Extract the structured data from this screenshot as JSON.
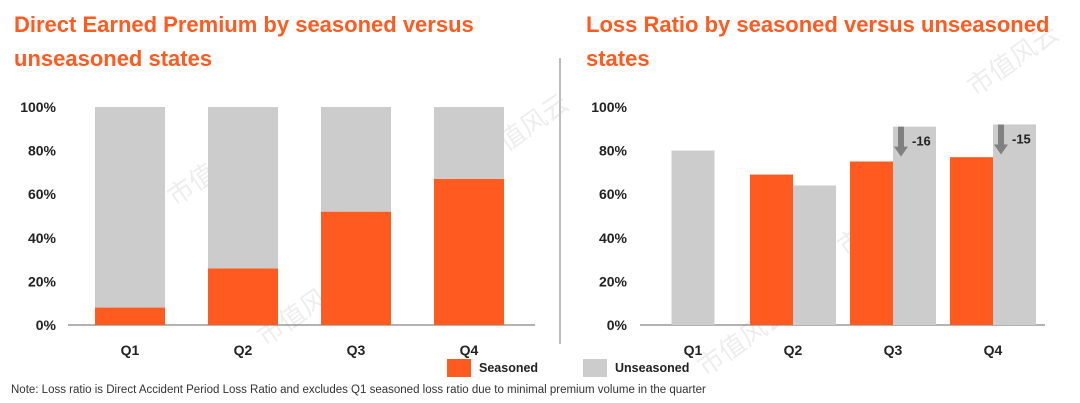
{
  "colors": {
    "seasoned": "#ff5a1f",
    "unseasoned": "#cccccc",
    "arrow": "#808080",
    "axis": "#666666"
  },
  "watermark": {
    "text": "市值风云"
  },
  "chart_data": [
    {
      "type": "bar",
      "title": "Direct Earned Premium by seasoned versus unseasoned states",
      "stacked": true,
      "categories": [
        "Q1",
        "Q2",
        "Q3",
        "Q4"
      ],
      "series": [
        {
          "name": "Seasoned",
          "values": [
            8,
            26,
            52,
            67
          ]
        },
        {
          "name": "Unseasoned",
          "values": [
            92,
            74,
            48,
            33
          ]
        }
      ],
      "ylim": [
        0,
        100
      ],
      "yticks": [
        "0%",
        "20%",
        "40%",
        "60%",
        "80%",
        "100%"
      ],
      "grid": false
    },
    {
      "type": "bar",
      "title": "Loss Ratio by seasoned versus unseasoned states",
      "stacked": false,
      "categories": [
        "Q1",
        "Q2",
        "Q3",
        "Q4"
      ],
      "series": [
        {
          "name": "Seasoned",
          "values": [
            null,
            69,
            75,
            77
          ]
        },
        {
          "name": "Unseasoned",
          "values": [
            80,
            64,
            91,
            92
          ]
        }
      ],
      "annotations": [
        {
          "category": "Q3",
          "label": "-16"
        },
        {
          "category": "Q4",
          "label": "-15"
        }
      ],
      "ylim": [
        0,
        100
      ],
      "yticks": [
        "0%",
        "20%",
        "40%",
        "60%",
        "80%",
        "100%"
      ],
      "grid": false
    }
  ],
  "legend": {
    "seasoned": "Seasoned",
    "unseasoned": "Unseasoned",
    "position": "bottom-center"
  },
  "note": "Note: Loss ratio is Direct Accident Period Loss Ratio and excludes Q1 seasoned loss ratio due to minimal premium volume in the quarter"
}
